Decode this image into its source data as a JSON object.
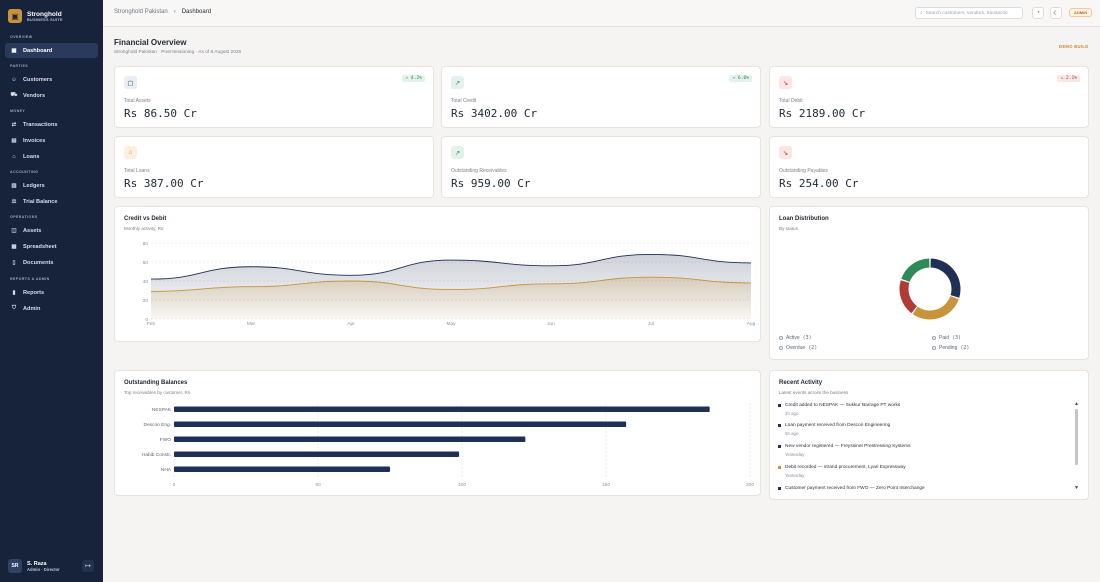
{
  "brand": {
    "name": "Stronghold",
    "sub": "BUSINESS SUITE",
    "logo_icon": "building-icon",
    "accent": "#c8933a"
  },
  "sidebar": {
    "sections": [
      "OVERVIEW",
      "PARTIES",
      "MONEY",
      "ACCOUNTING",
      "OPERATIONS",
      "REPORTS & ADMIN"
    ],
    "items": [
      {
        "label": "Dashboard",
        "icon": "grid-icon",
        "active": true
      },
      {
        "label": "Customers",
        "icon": "users-icon"
      },
      {
        "label": "Vendors",
        "icon": "truck-icon"
      },
      {
        "label": "Transactions",
        "icon": "exchange-icon"
      },
      {
        "label": "Invoices",
        "icon": "invoice-icon"
      },
      {
        "label": "Loans",
        "icon": "bank-icon"
      },
      {
        "label": "Ledgers",
        "icon": "book-icon"
      },
      {
        "label": "Trial Balance",
        "icon": "scale-icon"
      },
      {
        "label": "Assets",
        "icon": "box-icon"
      },
      {
        "label": "Spreadsheet",
        "icon": "table-icon"
      },
      {
        "label": "Documents",
        "icon": "file-icon"
      },
      {
        "label": "Reports",
        "icon": "chart-icon"
      },
      {
        "label": "Admin",
        "icon": "shield-icon"
      }
    ]
  },
  "user": {
    "initials": "SR",
    "name": "S. Raza",
    "role": "Admin · Director"
  },
  "topbar": {
    "breadcrumb": [
      "Stronghold Pakistan",
      "Dashboard"
    ],
    "search_placeholder": "Search customers, vendors, transactio",
    "badge": "ADMIN"
  },
  "page": {
    "title": "Financial Overview",
    "subtitle": "Stronghold Pakistan · Post-tensioning · As of 8 August 2026",
    "demo": "DEMO BUILD"
  },
  "kpis": [
    {
      "label": "Total Assets",
      "value": "Rs 86.50 Cr",
      "badge": "↗ 4.2%",
      "icon": "wallet-icon",
      "tone": "blue"
    },
    {
      "label": "Total Credit",
      "value": "Rs 3402.00 Cr",
      "badge": "↗ 6.0%",
      "icon": "trend-up-icon",
      "tone": "green"
    },
    {
      "label": "Total Debit",
      "value": "Rs 2189.00 Cr",
      "badge": "↘ 2.1%",
      "icon": "trend-down-icon",
      "tone": "red"
    },
    {
      "label": "Total Loans",
      "value": "Rs 387.00 Cr",
      "badge": "",
      "icon": "bank-icon",
      "tone": "orange"
    },
    {
      "label": "Outstanding Receivables",
      "value": "Rs 959.00 Cr",
      "badge": "",
      "icon": "arrow-up-right-icon",
      "tone": "green"
    },
    {
      "label": "Outstanding Payables",
      "value": "Rs 254.00 Cr",
      "badge": "",
      "icon": "arrow-down-right-icon",
      "tone": "red"
    }
  ],
  "colors": {
    "navy": "#1f2f55",
    "orange": "#c8933a",
    "green": "#2e8b57",
    "red": "#b03a36"
  },
  "credit_debit": {
    "title": "Credit vs Debit",
    "subtitle": "Monthly activity, Rs"
  },
  "loan_distribution": {
    "title": "Loan Distribution",
    "subtitle": "By status",
    "legend": [
      {
        "label": "Active",
        "count": "(3)"
      },
      {
        "label": "Paid",
        "count": "(3)"
      },
      {
        "label": "Overdue",
        "count": "(2)"
      },
      {
        "label": "Pending",
        "count": "(2)"
      }
    ]
  },
  "outstanding": {
    "title": "Outstanding Balances",
    "subtitle": "Top receivables by customer, Rs"
  },
  "activity": {
    "title": "Recent Activity",
    "subtitle": "Latest events across the business",
    "items": [
      {
        "text": "Credit added to NESPAK — Sukkur Barrage PT works",
        "when": "2h ago",
        "tone": "navy"
      },
      {
        "text": "Loan payment received from Descon Engineering",
        "when": "5h ago",
        "tone": "navy"
      },
      {
        "text": "New vendor registered — Freyssinet Prestressing Systems",
        "when": "Yesterday",
        "tone": "navy"
      },
      {
        "text": "Debit recorded — strand procurement, Lyari Expressway",
        "when": "Yesterday",
        "tone": "orange"
      },
      {
        "text": "Customer payment received from FWO — Zero Point Interchange",
        "when": "",
        "tone": "navy"
      }
    ]
  },
  "chart_data": [
    {
      "type": "area",
      "title": "Credit vs Debit",
      "ylim": [
        0,
        80
      ],
      "yticks": [
        0,
        20,
        40,
        60,
        80
      ],
      "categories": [
        "Feb",
        "Mar",
        "Apr",
        "May",
        "Jun",
        "Jul",
        "Aug"
      ],
      "series": [
        {
          "values": [
            42,
            55,
            46,
            62,
            56,
            68,
            59
          ]
        },
        {
          "values": [
            29,
            34,
            40,
            31,
            37,
            44,
            38
          ]
        }
      ]
    },
    {
      "type": "pie",
      "title": "Loan Distribution",
      "categories": [
        "Active",
        "Paid",
        "Overdue",
        "Pending"
      ],
      "values": [
        3,
        3,
        2,
        2
      ]
    },
    {
      "type": "bar",
      "title": "Outstanding Balances",
      "orientation": "horizontal",
      "categories": [
        "NESPAK",
        "Descon Eng.",
        "FWO",
        "Habib Constr.",
        "NHA"
      ],
      "values": [
        186,
        157,
        122,
        99,
        75
      ],
      "xlim": [
        0,
        200
      ],
      "xticks": [
        0,
        50,
        100,
        150,
        200
      ]
    }
  ]
}
